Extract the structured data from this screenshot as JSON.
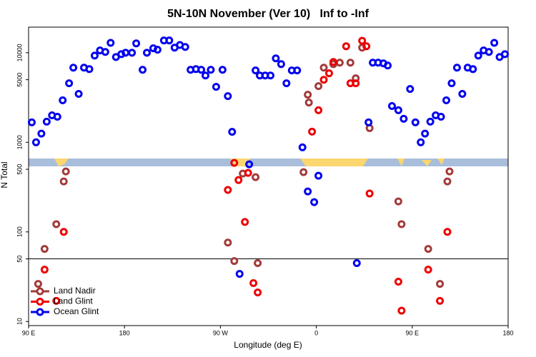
{
  "chart_data": {
    "type": "scatter",
    "title": "5N-10N November (Ver 10)   Inf to -Inf",
    "x_label": "Longitude (deg E)",
    "y_label": "N Total",
    "y_log": true,
    "xlim": [
      90,
      540
    ],
    "ylim": [
      9,
      19300
    ],
    "xticks": [
      {
        "value": 90,
        "label": "90 E"
      },
      {
        "value": 180,
        "label": "180"
      },
      {
        "value": 270,
        "label": "90 W"
      },
      {
        "value": 360,
        "label": "0"
      },
      {
        "value": 450,
        "label": "90 E"
      },
      {
        "value": 540,
        "label": "180"
      }
    ],
    "yticks": [
      10,
      50,
      100,
      500,
      1000,
      5000,
      10000
    ],
    "reference_line": 50,
    "legend": "lower left",
    "series": [
      {
        "name": "Land Nadir",
        "color": "#a33a3a",
        "x": [
          99,
          105,
          116,
          123,
          125,
          277,
          283,
          291,
          303,
          305,
          348,
          352,
          353,
          362,
          367,
          376,
          382,
          392,
          397,
          403,
          410,
          437,
          440,
          465,
          476,
          483,
          485
        ],
        "values": [
          26.3,
          64.6,
          122,
          366,
          473,
          76,
          47.3,
          448,
          408,
          44.8,
          464,
          3400,
          2780,
          4240,
          6810,
          7460,
          7740,
          7740,
          5180,
          11400,
          1440,
          219,
          122,
          64.6,
          26.3,
          366,
          473
        ]
      },
      {
        "name": "Land Glint",
        "color": "#ee0000",
        "x": [
          105,
          116,
          123,
          277,
          283,
          287,
          293,
          296,
          301,
          305,
          356,
          362,
          367,
          372,
          376,
          388,
          392,
          397,
          403,
          407,
          410,
          437,
          440,
          465,
          476,
          483
        ],
        "values": [
          37.9,
          17.0,
          100,
          294,
          589,
          379,
          129,
          456,
          26.8,
          21.1,
          1315,
          2280,
          4990,
          5890,
          7890,
          11800,
          4560,
          4560,
          13600,
          11800,
          268,
          27.8,
          13.2,
          37.9,
          17.0,
          100
        ]
      },
      {
        "name": "Ocean Glint",
        "color": "#0000ee",
        "x": [
          93,
          97,
          102,
          107,
          112,
          117,
          122,
          128,
          132,
          137,
          142,
          147,
          152,
          157,
          162,
          167,
          172,
          177,
          181,
          187,
          191,
          197,
          201,
          207,
          211,
          217,
          222,
          227,
          232,
          237,
          242,
          247,
          252,
          256,
          261,
          266,
          272,
          277,
          281,
          288,
          297,
          303,
          307,
          312,
          317,
          322,
          327,
          332,
          337,
          342,
          347,
          352,
          358,
          362,
          398,
          409,
          413,
          418,
          423,
          427,
          431,
          437,
          442,
          448,
          453,
          458,
          462,
          467,
          472,
          477,
          482,
          487,
          492,
          497,
          502,
          507,
          512,
          517,
          522,
          527,
          532,
          537
        ],
        "values": [
          1670,
          1000,
          1250,
          1700,
          2000,
          1930,
          2940,
          4560,
          6810,
          3470,
          6810,
          6560,
          9290,
          10600,
          10200,
          12900,
          8950,
          9640,
          10000,
          10000,
          12700,
          6450,
          10000,
          11200,
          10800,
          13700,
          13700,
          11400,
          12200,
          11600,
          6450,
          6560,
          6450,
          5570,
          6450,
          4160,
          6450,
          3280,
          1310,
          34,
          568,
          6340,
          5570,
          5570,
          5570,
          8650,
          7460,
          4560,
          6340,
          6340,
          879,
          283,
          215,
          424,
          44.8,
          1670,
          7740,
          7740,
          7600,
          7200,
          2540,
          2280,
          1830,
          3940,
          1670,
          1000,
          1250,
          1700,
          2000,
          1930,
          2940,
          4560,
          6810,
          3470,
          6810,
          6560,
          9290,
          10600,
          10200,
          12900,
          8950,
          9640
        ]
      }
    ]
  }
}
